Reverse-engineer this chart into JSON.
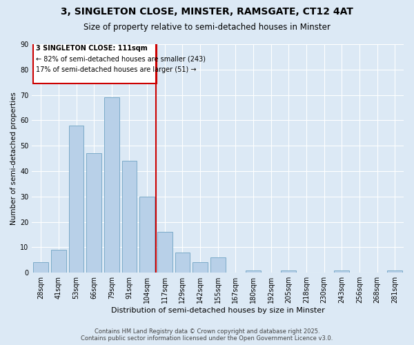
{
  "title": "3, SINGLETON CLOSE, MINSTER, RAMSGATE, CT12 4AT",
  "subtitle": "Size of property relative to semi-detached houses in Minster",
  "xlabel": "Distribution of semi-detached houses by size in Minster",
  "ylabel": "Number of semi-detached properties",
  "categories": [
    "28sqm",
    "41sqm",
    "53sqm",
    "66sqm",
    "79sqm",
    "91sqm",
    "104sqm",
    "117sqm",
    "129sqm",
    "142sqm",
    "155sqm",
    "167sqm",
    "180sqm",
    "192sqm",
    "205sqm",
    "218sqm",
    "230sqm",
    "243sqm",
    "256sqm",
    "268sqm",
    "281sqm"
  ],
  "bar_counts": [
    4,
    9,
    58,
    47,
    69,
    44,
    30,
    16,
    8,
    4,
    6,
    0,
    1,
    0,
    1,
    0,
    0,
    1,
    0,
    0,
    1
  ],
  "bar_color": "#b8d0e8",
  "bar_edge_color": "#7aaac8",
  "vline_x": 7,
  "vline_color": "#cc0000",
  "annotation_title": "3 SINGLETON CLOSE: 111sqm",
  "annotation_line1": "← 82% of semi-detached houses are smaller (243)",
  "annotation_line2": "17% of semi-detached houses are larger (51) →",
  "annotation_box_color": "#cc0000",
  "ylim": [
    0,
    90
  ],
  "yticks": [
    0,
    10,
    20,
    30,
    40,
    50,
    60,
    70,
    80,
    90
  ],
  "bg_color": "#dce9f5",
  "footer1": "Contains HM Land Registry data © Crown copyright and database right 2025.",
  "footer2": "Contains public sector information licensed under the Open Government Licence v3.0."
}
